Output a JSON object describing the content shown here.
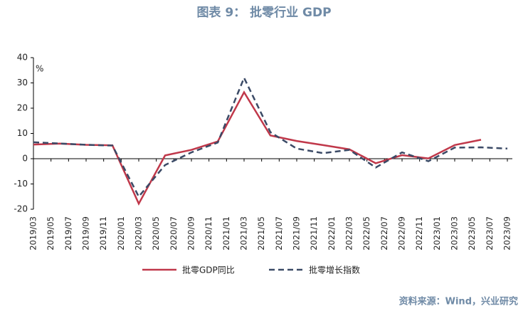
{
  "chart_data": {
    "type": "line",
    "title": "图表 9： 批零行业 GDP",
    "y_label": "%",
    "source": "资料来源：Wind，兴业研究",
    "categories": [
      "2019/03",
      "2019/05",
      "2019/07",
      "2019/09",
      "2019/11",
      "2020/01",
      "2020/03",
      "2020/05",
      "2020/07",
      "2020/09",
      "2020/11",
      "2021/01",
      "2021/03",
      "2021/05",
      "2021/07",
      "2021/09",
      "2021/11",
      "2022/01",
      "2022/03",
      "2022/05",
      "2022/07",
      "2022/09",
      "2022/11",
      "2023/01",
      "2023/03",
      "2023/05",
      "2023/07",
      "2023/09"
    ],
    "x": [
      "2019/03",
      "2019/06",
      "2019/09",
      "2019/12",
      "2020/03",
      "2020/06",
      "2020/09",
      "2020/12",
      "2021/03",
      "2021/06",
      "2021/09",
      "2021/12",
      "2022/03",
      "2022/06",
      "2022/09",
      "2022/12",
      "2023/03",
      "2023/06",
      "2023/09"
    ],
    "series": [
      {
        "name": "批零GDP同比",
        "color": "#c0384a",
        "dash": false,
        "values": [
          5.6,
          6.0,
          5.5,
          5.3,
          -17.8,
          1.3,
          3.5,
          6.8,
          26.3,
          9.2,
          7.0,
          5.4,
          3.7,
          -1.8,
          1.4,
          0.1,
          5.4,
          7.5,
          null
        ]
      },
      {
        "name": "批零增长指数",
        "color": "#3b4a66",
        "dash": true,
        "values": [
          6.5,
          6.0,
          5.5,
          5.2,
          -15.0,
          -2.5,
          2.5,
          6.4,
          32.0,
          10.5,
          4.0,
          2.2,
          3.5,
          -3.5,
          2.5,
          -1.0,
          4.4,
          4.5,
          4.0
        ]
      }
    ],
    "ylim": [
      -20,
      40
    ],
    "yticks": [
      -20,
      -10,
      0,
      10,
      20,
      30,
      40
    ]
  }
}
